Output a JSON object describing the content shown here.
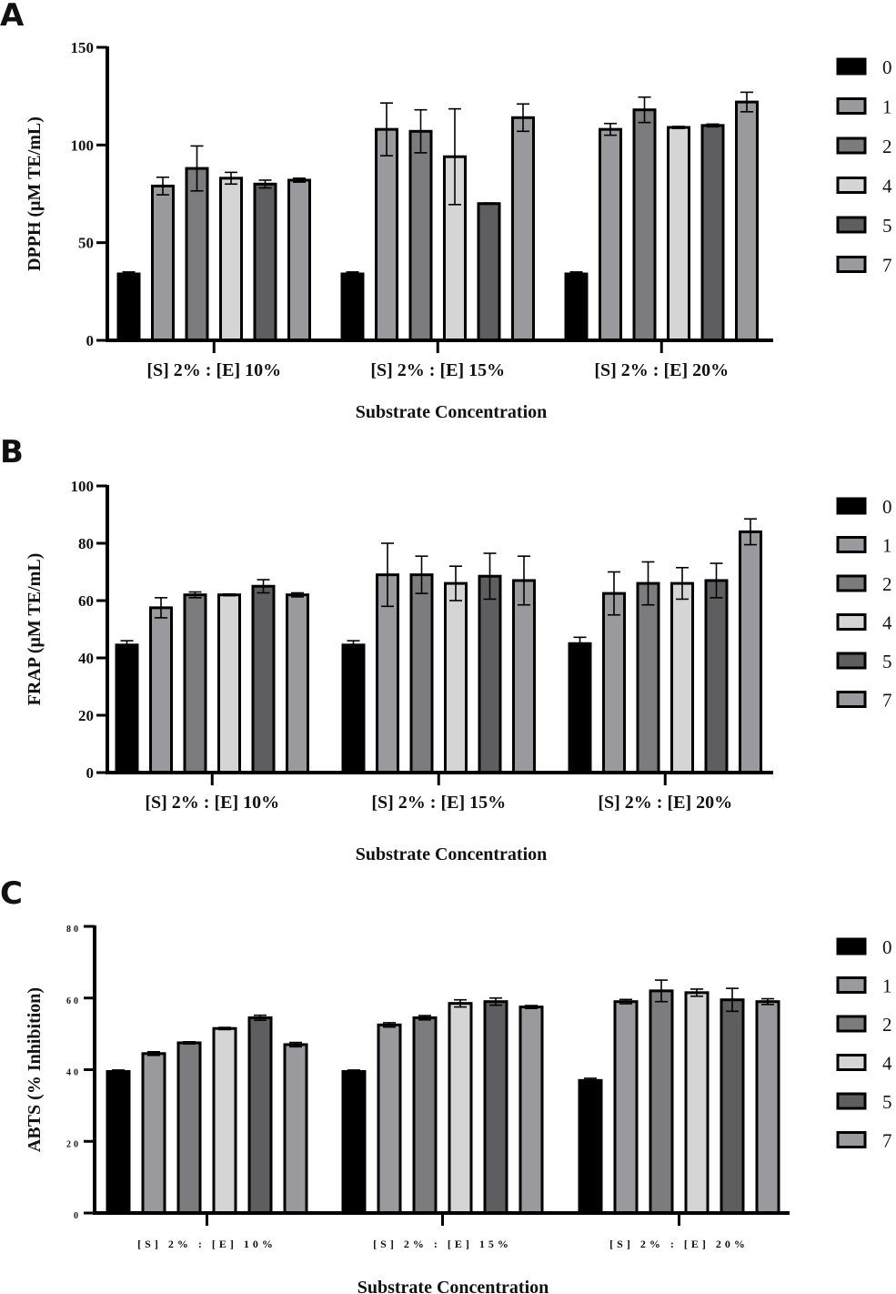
{
  "chart_data": [
    {
      "type": "bar",
      "panel": "A",
      "ylabel": "DPPH (μM TE/mL)",
      "xlabel": "Substrate Concentration",
      "ylim": [
        0,
        150
      ],
      "yticks": [
        0,
        50,
        100,
        150
      ],
      "categories": [
        "[S] 2% : [E] 10%",
        "[S] 2% : [E] 15%",
        "[S] 2% : [E] 20%"
      ],
      "series": [
        {
          "name": "0",
          "color": "#000000",
          "values": [
            34,
            34,
            34
          ],
          "errors": [
            1,
            1,
            1
          ]
        },
        {
          "name": "1",
          "color": "#9a9a9e",
          "values": [
            79,
            108,
            108
          ],
          "errors": [
            4.5,
            13.5,
            3
          ]
        },
        {
          "name": "2",
          "color": "#7c7c7e",
          "values": [
            88,
            107,
            118
          ],
          "errors": [
            11.5,
            11,
            6.5
          ]
        },
        {
          "name": "4",
          "color": "#d5d5d5",
          "values": [
            83,
            94,
            109
          ],
          "errors": [
            3,
            24.5,
            0.5
          ]
        },
        {
          "name": "5",
          "color": "#5e5e60",
          "values": [
            80,
            70,
            110
          ],
          "errors": [
            2,
            0.3,
            0.7
          ]
        },
        {
          "name": "7",
          "color": "#9a9a9e",
          "values": [
            82,
            114,
            122
          ],
          "errors": [
            1,
            7,
            5
          ]
        }
      ]
    },
    {
      "type": "bar",
      "panel": "B",
      "ylabel": "FRAP (μM TE/mL)",
      "xlabel": "Substrate Concentration",
      "ylim": [
        0,
        100
      ],
      "yticks": [
        0,
        20,
        40,
        60,
        80,
        100
      ],
      "categories": [
        "[S] 2% : [E] 10%",
        "[S] 2% : [E] 15%",
        "[S] 2% : [E] 20%"
      ],
      "series": [
        {
          "name": "0",
          "color": "#000000",
          "values": [
            44.5,
            44.5,
            45
          ],
          "errors": [
            1.5,
            1.5,
            2.2
          ]
        },
        {
          "name": "1",
          "color": "#9a9a9e",
          "values": [
            57.5,
            69,
            62.5
          ],
          "errors": [
            3.5,
            11,
            7.5
          ]
        },
        {
          "name": "2",
          "color": "#7c7c7e",
          "values": [
            62,
            69,
            66
          ],
          "errors": [
            1,
            6.5,
            7.5
          ]
        },
        {
          "name": "4",
          "color": "#d5d5d5",
          "values": [
            62,
            66,
            66
          ],
          "errors": [
            0.3,
            6,
            5.5
          ]
        },
        {
          "name": "5",
          "color": "#5e5e60",
          "values": [
            65,
            68.5,
            67
          ],
          "errors": [
            2.3,
            8,
            6
          ]
        },
        {
          "name": "7",
          "color": "#9a9a9e",
          "values": [
            62,
            67,
            84
          ],
          "errors": [
            0.7,
            8.5,
            4.5
          ]
        }
      ]
    },
    {
      "type": "bar",
      "panel": "C",
      "ylabel": "ABTS (% Inhibition)",
      "xlabel": "Substrate Concentration",
      "ylim": [
        0,
        80
      ],
      "yticks": [
        0,
        20,
        40,
        60,
        80
      ],
      "categories": [
        "[S] 2% : [E] 10%",
        "[S] 2% : [E] 15%",
        "[S] 2% : [E] 20%"
      ],
      "series": [
        {
          "name": "0",
          "color": "#000000",
          "values": [
            39.5,
            39.5,
            37
          ],
          "errors": [
            0.4,
            0.4,
            0.6
          ]
        },
        {
          "name": "1",
          "color": "#9a9a9e",
          "values": [
            44.5,
            52.5,
            59
          ],
          "errors": [
            0.5,
            0.6,
            0.6
          ]
        },
        {
          "name": "2",
          "color": "#7c7c7e",
          "values": [
            47.5,
            54.5,
            62
          ],
          "errors": [
            0.3,
            0.6,
            3
          ]
        },
        {
          "name": "4",
          "color": "#d5d5d5",
          "values": [
            51.5,
            58.5,
            61.5
          ],
          "errors": [
            0.3,
            1,
            1
          ]
        },
        {
          "name": "5",
          "color": "#5e5e60",
          "values": [
            54.5,
            59,
            59.5
          ],
          "errors": [
            0.7,
            1,
            3.2
          ]
        },
        {
          "name": "7",
          "color": "#9a9a9e",
          "values": [
            47,
            57.5,
            59
          ],
          "errors": [
            0.6,
            0.4,
            0.8
          ]
        }
      ]
    }
  ]
}
